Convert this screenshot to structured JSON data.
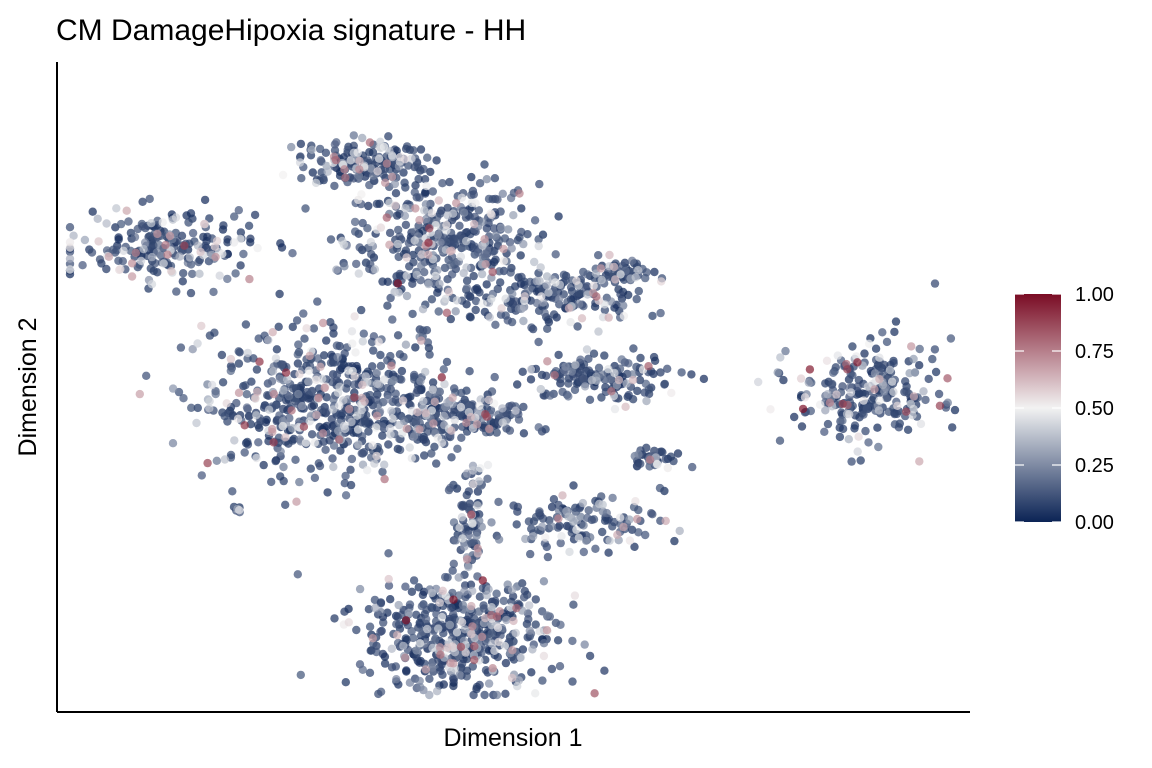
{
  "chart_data": {
    "type": "scatter",
    "title": "CM DamageHipoxia signature - HH",
    "xlabel": "Dimension 1",
    "ylabel": "Dimension 2",
    "x_ticks": [],
    "y_ticks": [],
    "grid": false,
    "point_alpha": 0.7,
    "color_scale": {
      "type": "gradient",
      "range": [
        0,
        1
      ],
      "ticks": [
        0.0,
        0.25,
        0.5,
        0.75,
        1.0
      ],
      "tick_labels": [
        "0.00",
        "0.25",
        "0.50",
        "0.75",
        "1.00"
      ],
      "low": "#0b2355",
      "mid": "#f2f2f2",
      "high": "#7a0c24",
      "legend_position": "right"
    },
    "clusters": [
      {
        "cx": 0.42,
        "cy": 0.73,
        "n": 420,
        "sx": 0.06,
        "sy": 0.06
      },
      {
        "cx": 0.33,
        "cy": 0.86,
        "n": 180,
        "sx": 0.04,
        "sy": 0.02
      },
      {
        "cx": 0.55,
        "cy": 0.64,
        "n": 170,
        "sx": 0.05,
        "sy": 0.025
      },
      {
        "cx": 0.62,
        "cy": 0.68,
        "n": 60,
        "sx": 0.02,
        "sy": 0.012
      },
      {
        "cx": 0.11,
        "cy": 0.72,
        "n": 220,
        "sx": 0.055,
        "sy": 0.03
      },
      {
        "cx": 0.3,
        "cy": 0.47,
        "n": 650,
        "sx": 0.08,
        "sy": 0.065
      },
      {
        "cx": 0.45,
        "cy": 0.45,
        "n": 150,
        "sx": 0.04,
        "sy": 0.02
      },
      {
        "cx": 0.6,
        "cy": 0.51,
        "n": 150,
        "sx": 0.05,
        "sy": 0.02
      },
      {
        "cx": 0.66,
        "cy": 0.38,
        "n": 40,
        "sx": 0.015,
        "sy": 0.008
      },
      {
        "cx": 0.9,
        "cy": 0.49,
        "n": 250,
        "sx": 0.045,
        "sy": 0.045
      },
      {
        "cx": 0.45,
        "cy": 0.28,
        "n": 80,
        "sx": 0.01,
        "sy": 0.05
      },
      {
        "cx": 0.58,
        "cy": 0.28,
        "n": 130,
        "sx": 0.05,
        "sy": 0.025
      },
      {
        "cx": 0.44,
        "cy": 0.1,
        "n": 520,
        "sx": 0.06,
        "sy": 0.05
      },
      {
        "cx": 0.19,
        "cy": 0.3,
        "n": 6,
        "sx": 0.004,
        "sy": 0.004
      }
    ]
  }
}
